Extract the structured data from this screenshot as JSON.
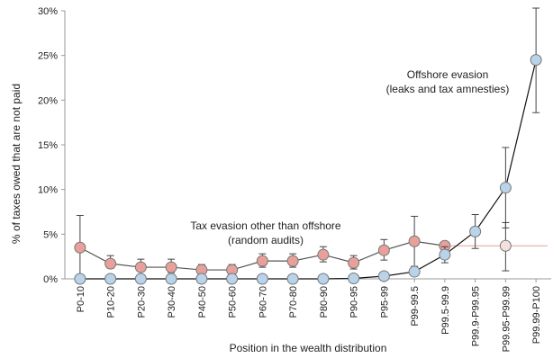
{
  "chart_data": {
    "type": "line",
    "title": "",
    "xlabel": "Position in the wealth distribution",
    "ylabel": "% of taxes owed that are not paid",
    "categories": [
      "P0-10",
      "P10-20",
      "P20-30",
      "P30-40",
      "P40-50",
      "P50-60",
      "P60-70",
      "P70-80",
      "P80-90",
      "P90-95",
      "P95-99",
      "P99-99.5",
      "P99.5-99.9",
      "P99.9-P99.95",
      "P99.95-P99.99",
      "P99.99-P100"
    ],
    "y_ticks": [
      "0%",
      "5%",
      "10%",
      "15%",
      "20%",
      "25%",
      "30%"
    ],
    "ylim": [
      0,
      30
    ],
    "grid": false,
    "series": [
      {
        "key": "tax_evasion_other",
        "values": [
          3.5,
          1.7,
          1.3,
          1.3,
          1.0,
          1.0,
          2.0,
          2.0,
          2.7,
          1.8,
          3.2,
          4.2,
          3.7,
          null,
          3.7,
          null
        ],
        "error_low": [
          0.0,
          1.2,
          0.8,
          0.7,
          0.5,
          0.5,
          1.3,
          1.3,
          1.9,
          1.1,
          2.1,
          1.4,
          null,
          null,
          0.9,
          null
        ],
        "error_high": [
          7.1,
          2.6,
          2.2,
          2.2,
          1.6,
          1.6,
          2.8,
          2.8,
          3.6,
          2.6,
          4.4,
          7.0,
          null,
          null,
          6.3,
          null
        ],
        "color": "#e8a09a",
        "stroke": "#555555"
      },
      {
        "key": "offshore_evasion",
        "values": [
          0.0,
          0.0,
          0.0,
          0.0,
          0.0,
          0.0,
          0.0,
          0.0,
          0.0,
          0.05,
          0.3,
          0.8,
          2.7,
          5.3,
          10.2,
          24.5
        ],
        "error_low": [
          null,
          null,
          null,
          null,
          null,
          null,
          null,
          null,
          null,
          null,
          null,
          null,
          1.8,
          3.4,
          5.7,
          18.6
        ],
        "error_high": [
          null,
          null,
          null,
          null,
          null,
          null,
          null,
          null,
          null,
          null,
          null,
          null,
          3.6,
          7.2,
          14.7,
          30.3
        ],
        "color": "#b9d3ea",
        "stroke": "#111111"
      }
    ],
    "annotations": [
      {
        "line1": "Offshore evasion",
        "line2": "(leaks and tax amnesties)"
      },
      {
        "line1": "Tax evasion other than offshore",
        "line2": "(random audits)"
      }
    ],
    "reference_line": {
      "value": 3.7,
      "color": "#e8a09a"
    }
  }
}
